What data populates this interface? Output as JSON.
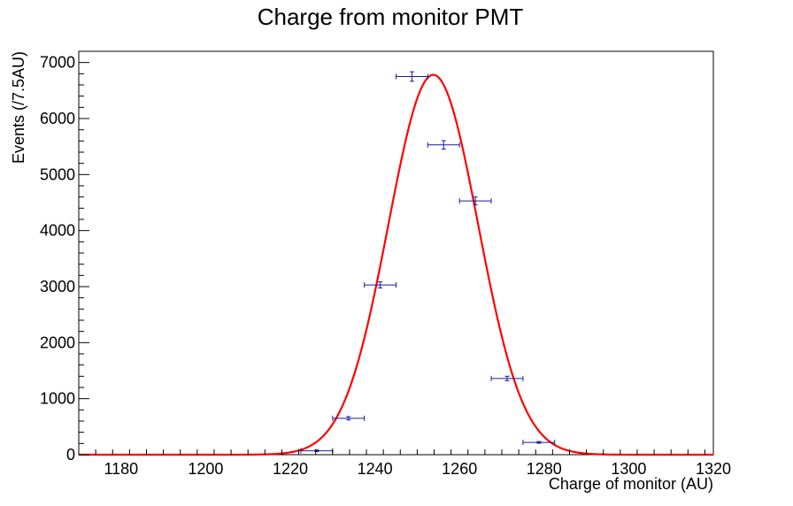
{
  "chart_data": {
    "type": "scatter",
    "title": "Charge from monitor PMT",
    "xlabel": "Charge of monitor (AU)",
    "ylabel": "Events (/7.5AU)",
    "xlim": [
      1170,
      1320
    ],
    "ylim": [
      0,
      7200
    ],
    "x_ticks": [
      1180,
      1200,
      1220,
      1240,
      1260,
      1280,
      1300,
      1320
    ],
    "y_ticks": [
      0,
      1000,
      2000,
      3000,
      4000,
      5000,
      6000,
      7000
    ],
    "grid": false,
    "bin_width": 7.5,
    "series": [
      {
        "kind": "points-with-errors",
        "color": "#1a1aa0",
        "points": [
          {
            "x": 1226.25,
            "y": 70,
            "xerr": 3.75,
            "yerr": 15
          },
          {
            "x": 1233.75,
            "y": 650,
            "xerr": 3.75,
            "yerr": 30
          },
          {
            "x": 1241.25,
            "y": 3030,
            "xerr": 3.75,
            "yerr": 55
          },
          {
            "x": 1248.75,
            "y": 6750,
            "xerr": 3.75,
            "yerr": 85
          },
          {
            "x": 1256.25,
            "y": 5530,
            "xerr": 3.75,
            "yerr": 75
          },
          {
            "x": 1263.75,
            "y": 4530,
            "xerr": 3.75,
            "yerr": 70
          },
          {
            "x": 1271.25,
            "y": 1360,
            "xerr": 3.75,
            "yerr": 40
          },
          {
            "x": 1278.75,
            "y": 220,
            "xerr": 3.75,
            "yerr": 15
          }
        ]
      },
      {
        "kind": "fit-curve",
        "color": "#ff0000",
        "model": "gaussian",
        "amplitude": 6780,
        "mean": 1253.8,
        "sigma": 10.6
      }
    ]
  }
}
